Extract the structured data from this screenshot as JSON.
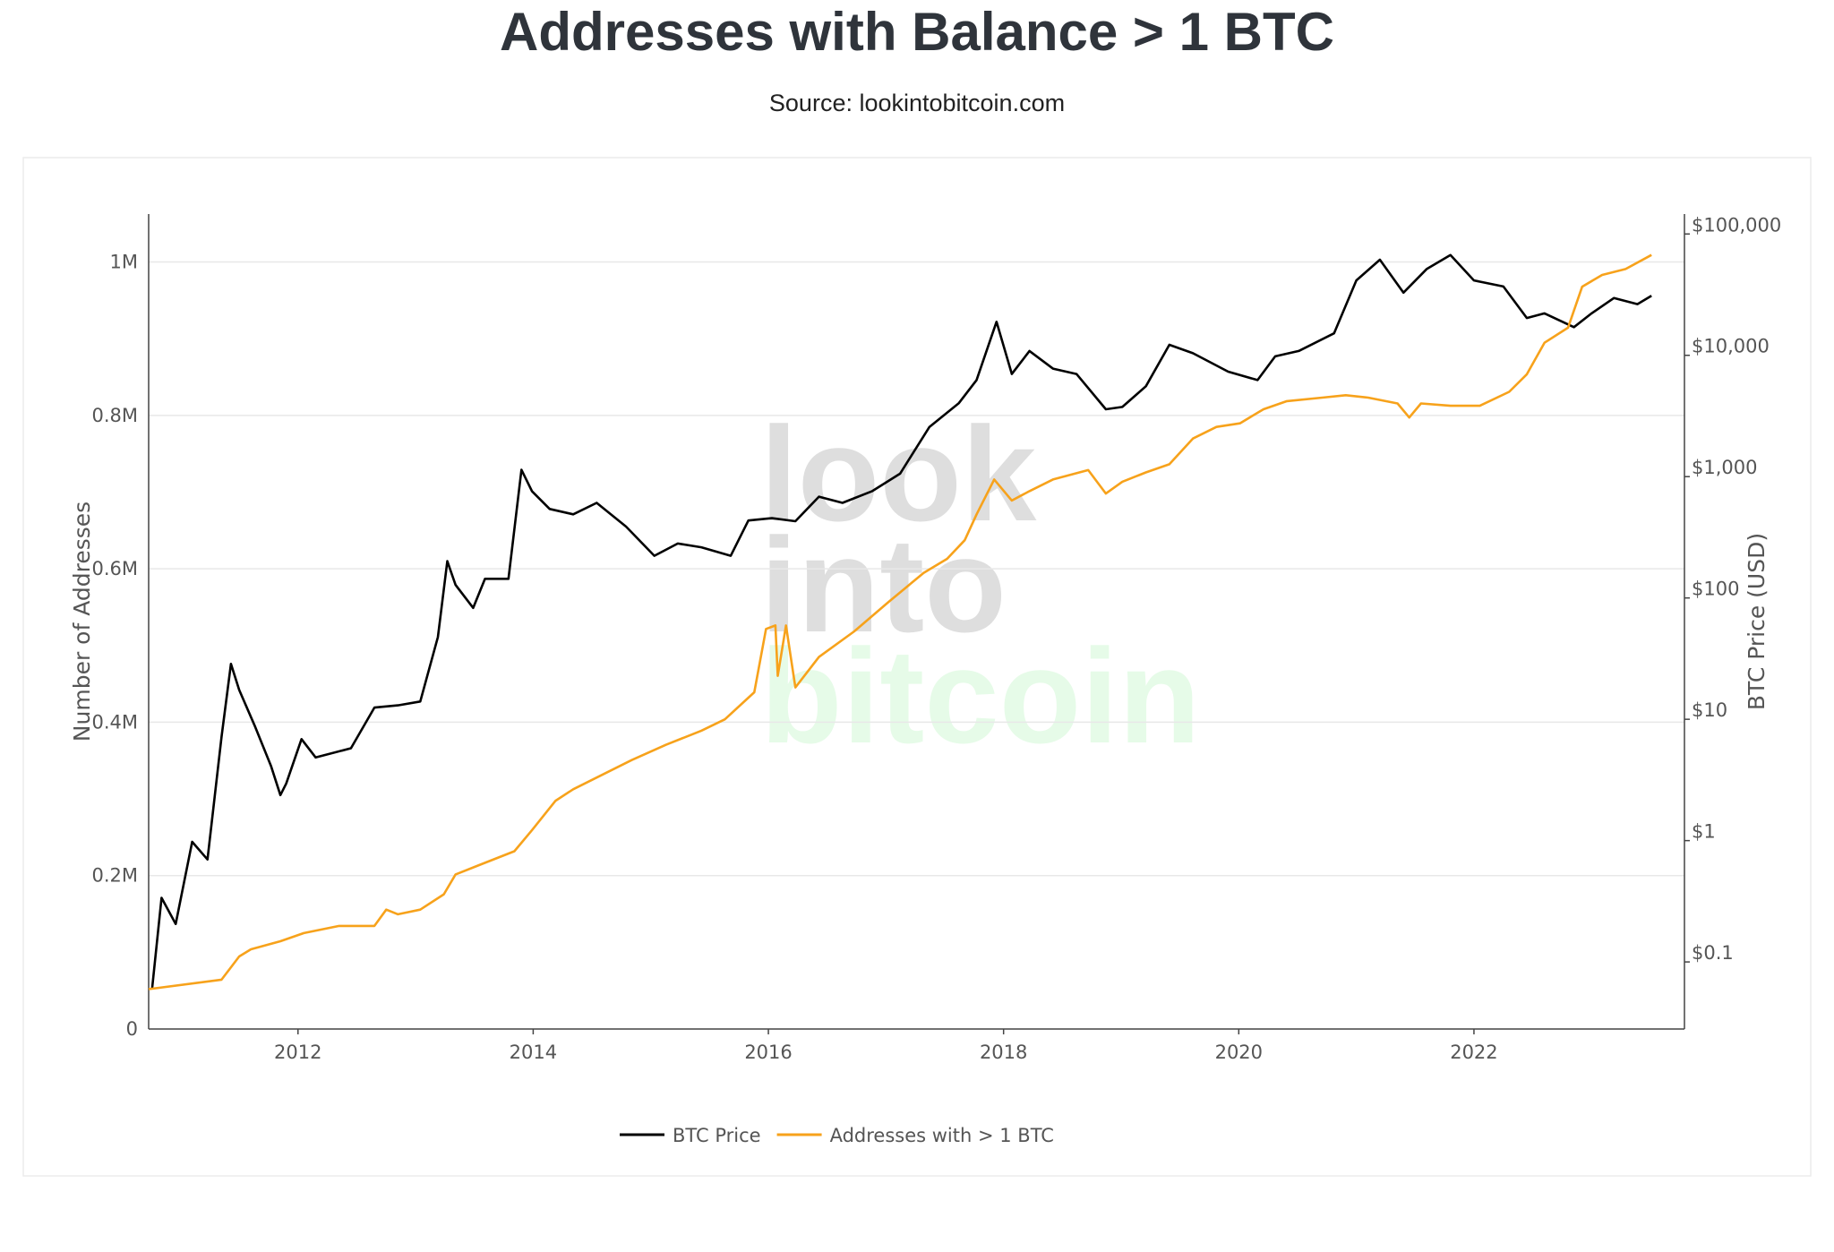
{
  "chart_data": {
    "type": "line",
    "title": "Addresses with Balance > 1 BTC",
    "subtitle": "Source: lookintobitcoin.com",
    "watermark": [
      "look",
      "into",
      "bitcoin"
    ],
    "ylabel": "Number of Addresses",
    "y2label": "BTC Price (USD)",
    "xlim": [
      2010.73,
      2023.79
    ],
    "xticks": [
      2012,
      2014,
      2016,
      2018,
      2020,
      2022
    ],
    "ylim": [
      0,
      1062500
    ],
    "yticks": [
      0,
      {
        "value": 200000,
        "label": "0.2M"
      },
      {
        "value": 400000,
        "label": "0.4M"
      },
      {
        "value": 600000,
        "label": "0.6M"
      },
      {
        "value": 800000,
        "label": "0.8M"
      },
      {
        "value": 1000000,
        "label": "1M"
      }
    ],
    "y2lim": [
      0.028,
      146000
    ],
    "y2log": true,
    "y2ticks": [
      {
        "value": 0.1,
        "label": "$0.1"
      },
      {
        "value": 1,
        "label": "$1"
      },
      {
        "value": 10,
        "label": "$10"
      },
      {
        "value": 100,
        "label": "$100"
      },
      {
        "value": 1000,
        "label": "$1,000"
      },
      {
        "value": 10000,
        "label": "$10,000"
      },
      {
        "value": 100000,
        "label": "$100,000"
      }
    ],
    "grid": true,
    "legend": "bottom",
    "series": [
      {
        "name": "BTC Price",
        "color": "#000000",
        "axis": "y",
        "x": [
          2010.76,
          2010.84,
          2010.96,
          2011.1,
          2011.23,
          2011.35,
          2011.43,
          2011.5,
          2011.63,
          2011.77,
          2011.85,
          2011.9,
          2012.03,
          2012.15,
          2012.45,
          2012.65,
          2012.85,
          2013.04,
          2013.19,
          2013.27,
          2013.34,
          2013.49,
          2013.59,
          2013.79,
          2013.9,
          2013.99,
          2014.14,
          2014.34,
          2014.54,
          2014.79,
          2015.03,
          2015.23,
          2015.43,
          2015.68,
          2015.83,
          2016.03,
          2016.23,
          2016.43,
          2016.63,
          2016.88,
          2017.12,
          2017.37,
          2017.62,
          2017.77,
          2017.94,
          2018.07,
          2018.22,
          2018.42,
          2018.62,
          2018.87,
          2019.01,
          2019.21,
          2019.41,
          2019.61,
          2019.91,
          2020.16,
          2020.31,
          2020.51,
          2020.81,
          2021.0,
          2021.2,
          2021.4,
          2021.6,
          2021.8,
          2022.0,
          2022.25,
          2022.45,
          2022.6,
          2022.85,
          2023.0,
          2023.19,
          2023.39,
          2023.51
        ],
        "values": [
          53000,
          171000,
          137000,
          244000,
          221000,
          381000,
          476000,
          442000,
          396000,
          343000,
          305000,
          320000,
          378000,
          354000,
          366000,
          419000,
          422000,
          427000,
          511000,
          610000,
          579000,
          549000,
          587000,
          587000,
          729000,
          701000,
          678000,
          671000,
          686000,
          655000,
          617000,
          633000,
          628000,
          617000,
          663000,
          666000,
          662000,
          694000,
          686000,
          701000,
          724000,
          785000,
          816000,
          846000,
          922000,
          854000,
          884000,
          861000,
          854000,
          808000,
          811000,
          838000,
          892000,
          881000,
          857000,
          846000,
          877000,
          884000,
          907000,
          976000,
          1003000,
          960000,
          991000,
          1009000,
          976000,
          968000,
          927000,
          933000,
          915000,
          933000,
          953000,
          945000,
          956000
        ]
      },
      {
        "name": "Addresses with > 1 BTC",
        "color": "#f7a21b",
        "axis": "y2",
        "x": [
          2010.73,
          2011.35,
          2011.5,
          2011.6,
          2011.85,
          2012.05,
          2012.35,
          2012.65,
          2012.75,
          2012.85,
          2013.04,
          2013.24,
          2013.34,
          2013.54,
          2013.84,
          2013.99,
          2014.19,
          2014.34,
          2014.64,
          2014.84,
          2015.13,
          2015.43,
          2015.63,
          2015.88,
          2015.98,
          2016.06,
          2016.08,
          2016.15,
          2016.23,
          2016.43,
          2016.73,
          2017.02,
          2017.32,
          2017.52,
          2017.67,
          2017.77,
          2017.92,
          2018.07,
          2018.22,
          2018.42,
          2018.72,
          2018.87,
          2019.01,
          2019.21,
          2019.41,
          2019.61,
          2019.81,
          2020.01,
          2020.21,
          2020.41,
          2020.71,
          2020.91,
          2021.1,
          2021.35,
          2021.45,
          2021.55,
          2021.8,
          2022.05,
          2022.3,
          2022.45,
          2022.6,
          2022.8,
          2022.92,
          2023.09,
          2023.29,
          2023.51
        ],
        "values": [
          0.0597,
          0.0714,
          0.111,
          0.127,
          0.148,
          0.173,
          0.198,
          0.198,
          0.27,
          0.247,
          0.27,
          0.361,
          0.526,
          0.628,
          0.818,
          1.22,
          2.13,
          2.65,
          3.7,
          4.62,
          6.17,
          8.05,
          10.0,
          16.7,
          55.5,
          59.3,
          22.8,
          59.3,
          18.3,
          32.6,
          53.0,
          92.3,
          161,
          210,
          299,
          488,
          948,
          635,
          760,
          948,
          1132,
          726,
          908,
          1084,
          1265,
          2061,
          2570,
          2748,
          3589,
          4188,
          4477,
          4688,
          4477,
          4009,
          3069,
          4009,
          3837,
          3837,
          5000,
          6982,
          12700,
          16900,
          36800,
          46000,
          51400,
          67100
        ]
      }
    ]
  }
}
